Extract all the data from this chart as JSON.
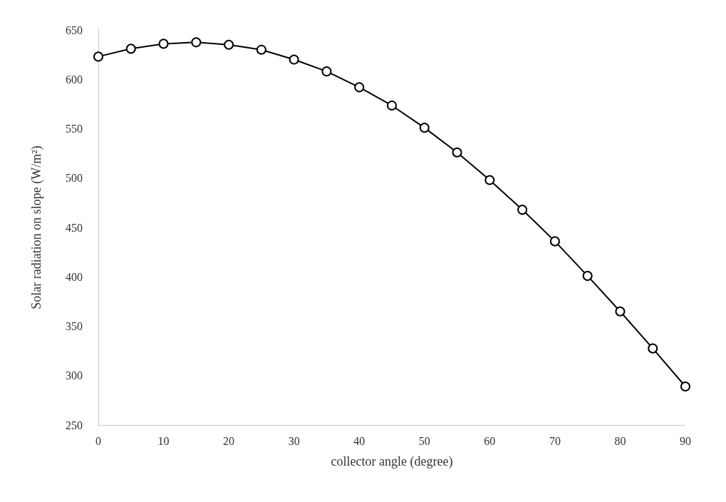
{
  "chart_data": {
    "type": "line",
    "xlabel": "collector angle (degree)",
    "ylabel": "Solar radiation on slope (W/m²)",
    "x": [
      0,
      5,
      10,
      15,
      20,
      25,
      30,
      35,
      40,
      45,
      50,
      55,
      60,
      65,
      70,
      75,
      80,
      85,
      90
    ],
    "series": [
      {
        "color": "#000000",
        "values": [
          623,
          631,
          636,
          637.5,
          635,
          630,
          620,
          608,
          592,
          573.5,
          551,
          526,
          498,
          468,
          436,
          401,
          365,
          327.5,
          289
        ]
      }
    ],
    "xlim": [
      0,
      90
    ],
    "xticks": [
      0,
      10,
      20,
      30,
      40,
      50,
      60,
      70,
      80,
      90
    ],
    "ylim": [
      250,
      650
    ],
    "yticks": [
      250,
      300,
      350,
      400,
      450,
      500,
      550,
      600,
      650
    ],
    "grid": false,
    "marker": "circle",
    "line_style": "solid"
  }
}
